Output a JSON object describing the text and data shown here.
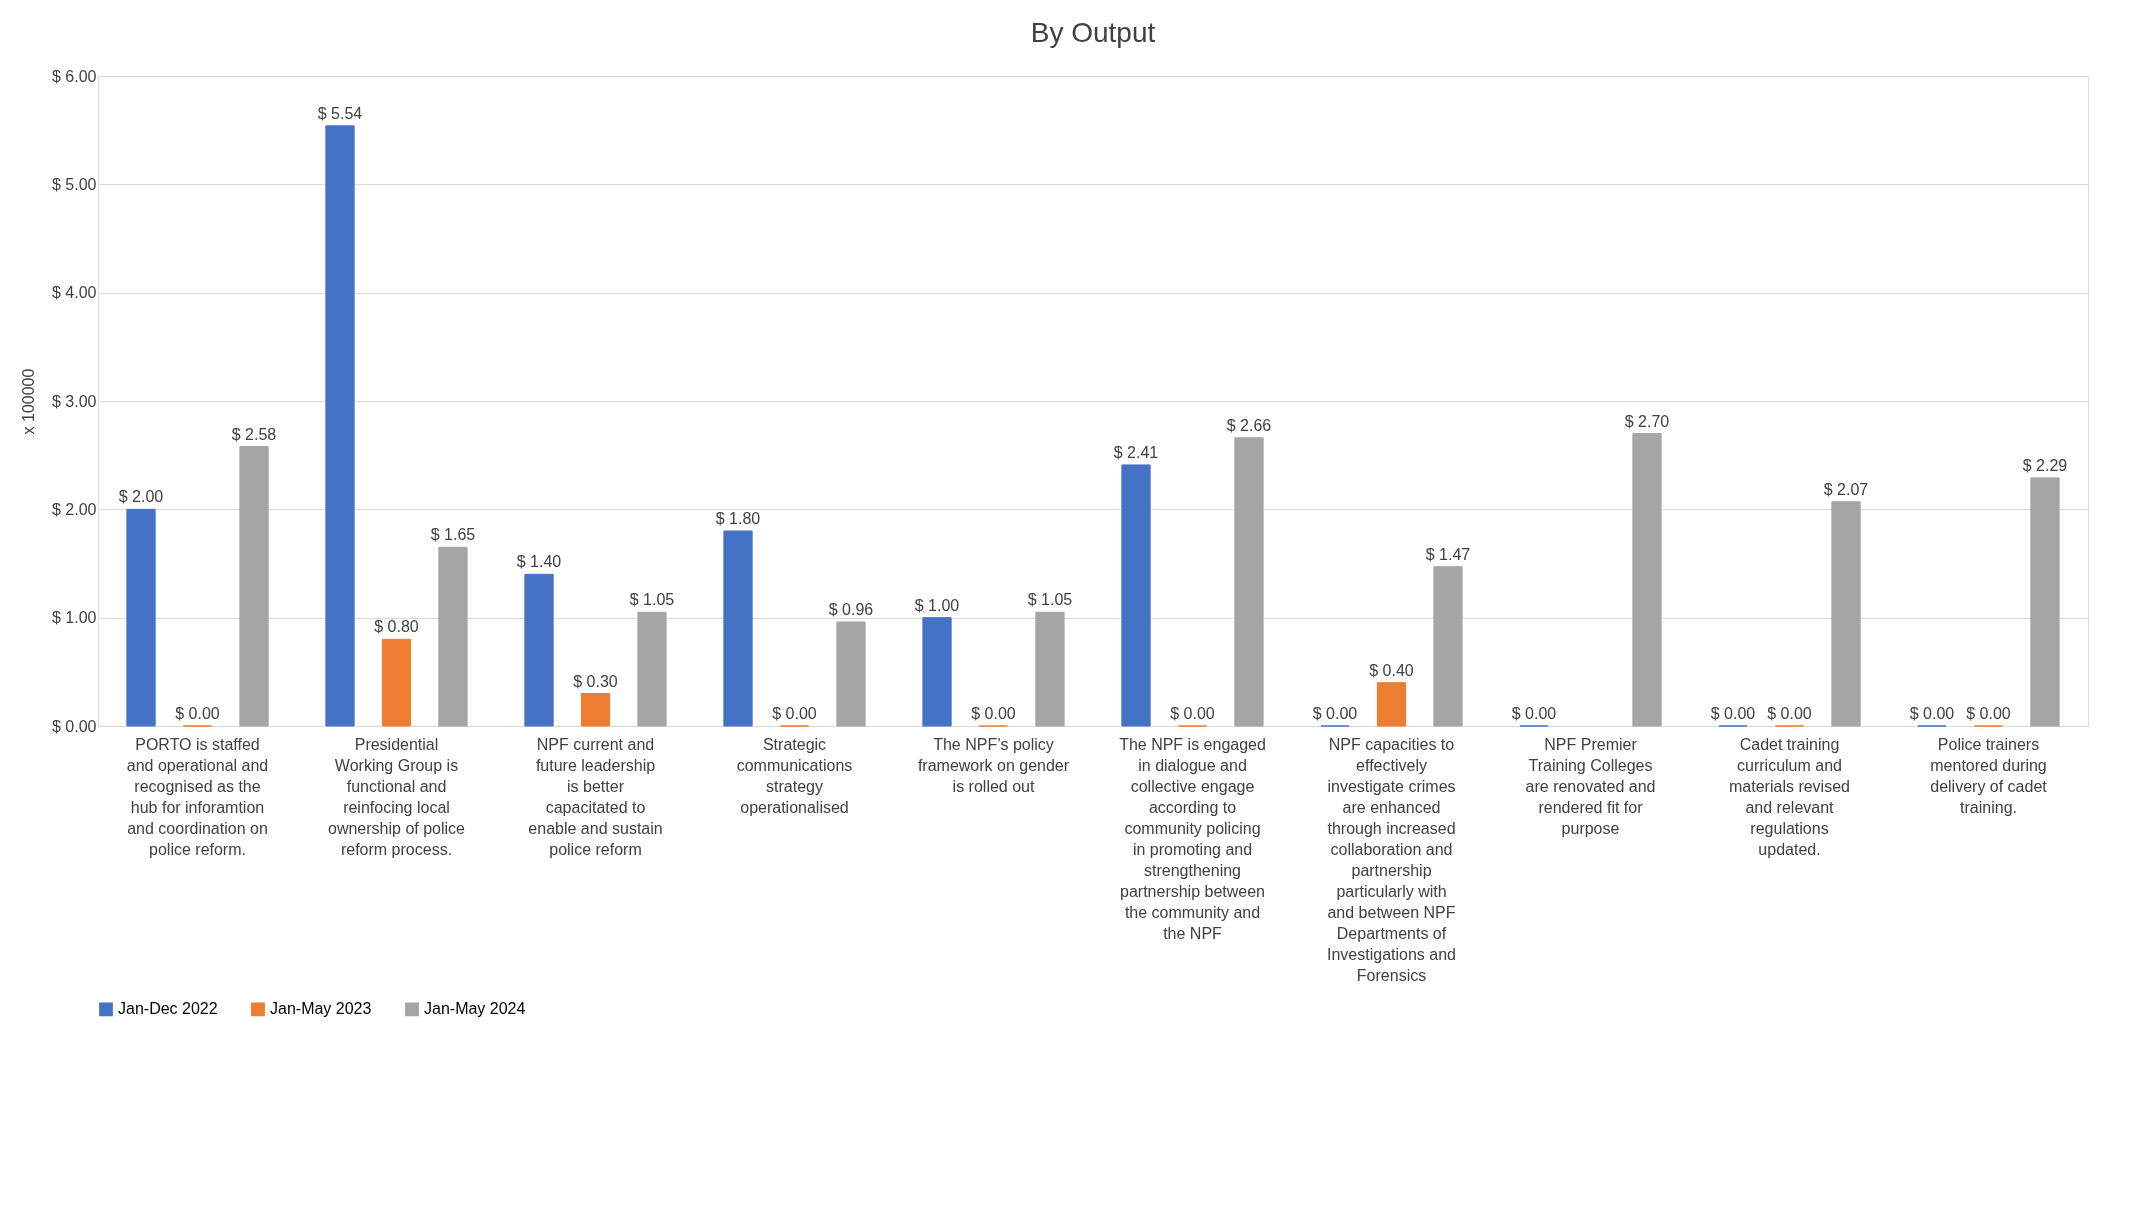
{
  "chart_data": {
    "type": "bar",
    "title": "By Output",
    "ylabel": "x 100000",
    "categories": [
      "PORTO is staffed and operational and recognised as the hub for inforamtion and coordination on police reform.",
      "Presidential Working Group is functional and reinfocing local ownership of police reform process.",
      "NPF current and future leadership is better capacitated to enable and sustain police reform",
      "Strategic communications strategy operationalised",
      "The NPF’s policy framework on gender is rolled out",
      "The NPF is engaged in dialogue and collective engage according to community policing in promoting and strengthening partnership between the community and the NPF",
      "NPF capacities to effectively investigate crimes are enhanced through increased collaboration and partnership particularly with and between NPF Departments of Investigations and Forensics",
      "NPF Premier Training Colleges are renovated and rendered fit for purpose",
      "Cadet training curriculum and materials revised and relevant regulations updated.",
      "Police trainers mentored during delivery of cadet training."
    ],
    "series": [
      {
        "name": "Jan-Dec 2022",
        "color": "#4472c4",
        "values": [
          2.0,
          5.54,
          1.4,
          1.8,
          1.0,
          2.41,
          0.0,
          0.0,
          0.0,
          0.0
        ],
        "value_labels": [
          "$ 2.00",
          "$ 5.54",
          "$ 1.40",
          "$ 1.80",
          "$ 1.00",
          "$ 2.41",
          "$ 0.00",
          "$ 0.00",
          "$ 0.00",
          "$ 0.00"
        ]
      },
      {
        "name": "Jan-May 2023",
        "color": "#ed7d31",
        "values": [
          0.0,
          0.8,
          0.3,
          0.0,
          0.0,
          0.0,
          0.4,
          null,
          0.0,
          0.0
        ],
        "value_labels": [
          "$ 0.00",
          "$ 0.80",
          "$ 0.30",
          "$ 0.00",
          "$ 0.00",
          "$ 0.00",
          "$ 0.40",
          null,
          "$ 0.00",
          "$ 0.00"
        ]
      },
      {
        "name": "Jan-May 2024",
        "color": "#a5a5a5",
        "values": [
          2.58,
          1.65,
          1.05,
          0.96,
          1.05,
          2.66,
          1.47,
          2.7,
          2.07,
          2.29
        ],
        "value_labels": [
          "$ 2.58",
          "$ 1.65",
          "$ 1.05",
          "$ 0.96",
          "$ 1.05",
          "$ 2.66",
          "$ 1.47",
          "$ 2.70",
          "$ 2.07",
          "$ 2.29"
        ]
      }
    ],
    "ylim": [
      0,
      6
    ],
    "yticks": [
      {
        "value": 0,
        "label": "$ 0.00"
      },
      {
        "value": 1,
        "label": "$ 1.00"
      },
      {
        "value": 2,
        "label": "$ 2.00"
      },
      {
        "value": 3,
        "label": "$ 3.00"
      },
      {
        "value": 4,
        "label": "$ 4.00"
      },
      {
        "value": 5,
        "label": "$ 5.00"
      },
      {
        "value": 6,
        "label": "$ 6.00"
      }
    ],
    "grid": "y",
    "legend": "bottom",
    "data_labels": true
  }
}
